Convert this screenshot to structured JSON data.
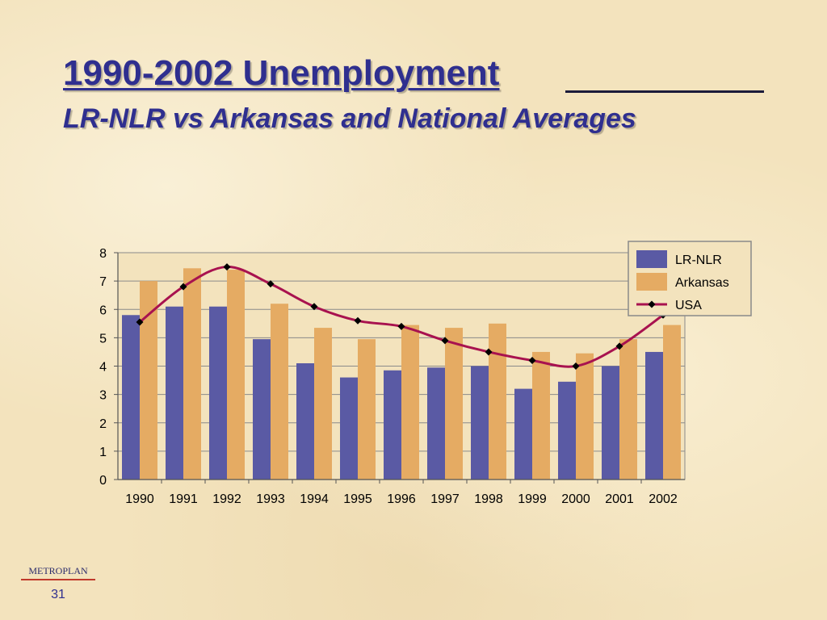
{
  "slide": {
    "title": "1990-2002 Unemployment",
    "subtitle": "LR-NLR vs Arkansas and National Averages",
    "brand": "METROPLAN",
    "page_number": "31"
  },
  "chart_data": {
    "type": "bar",
    "categories": [
      "1990",
      "1991",
      "1992",
      "1993",
      "1994",
      "1995",
      "1996",
      "1997",
      "1998",
      "1999",
      "2000",
      "2001",
      "2002"
    ],
    "series": [
      {
        "name": "LR-NLR",
        "type": "bar",
        "color": "#5a5aa4",
        "values": [
          5.8,
          6.1,
          6.1,
          4.95,
          4.1,
          3.6,
          3.85,
          3.95,
          4.0,
          3.2,
          3.45,
          4.0,
          4.5
        ]
      },
      {
        "name": "Arkansas",
        "type": "bar",
        "color": "#e5ab63",
        "values": [
          7.0,
          7.45,
          7.4,
          6.2,
          5.35,
          4.95,
          5.45,
          5.35,
          5.5,
          4.5,
          4.45,
          4.95,
          5.45
        ]
      },
      {
        "name": "USA",
        "type": "line",
        "color": "#a8124f",
        "marker_color": "#000000",
        "values": [
          5.55,
          6.8,
          7.5,
          6.9,
          6.1,
          5.6,
          5.4,
          4.9,
          4.5,
          4.2,
          4.0,
          4.7,
          5.8
        ]
      }
    ],
    "yticks": [
      "0",
      "1",
      "2",
      "3",
      "4",
      "5",
      "6",
      "7",
      "8"
    ],
    "ylim": [
      0,
      8
    ],
    "grid": true,
    "legend_position": "top-right",
    "plot_background": "#f3e3bd"
  }
}
